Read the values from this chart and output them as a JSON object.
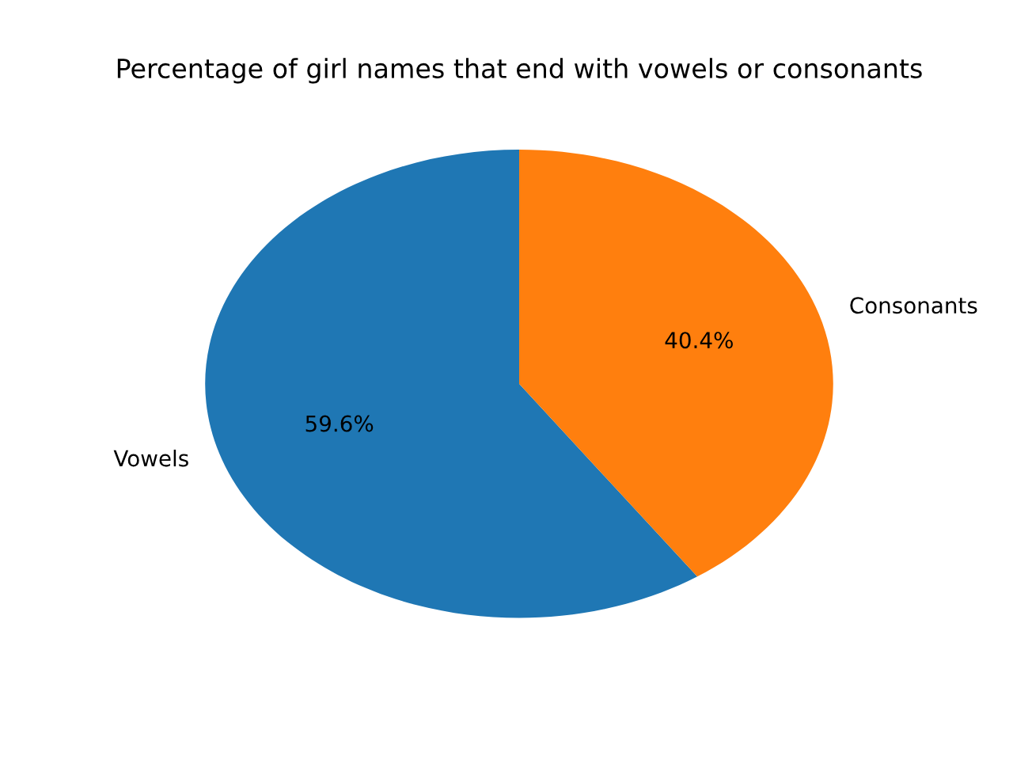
{
  "chart_data": {
    "type": "pie",
    "title": "Percentage of girl names that end with vowels or consonants",
    "categories": [
      "Vowels",
      "Consonants"
    ],
    "values": [
      59.6,
      40.4
    ],
    "colors": [
      "#1f77b4",
      "#ff7f0e"
    ],
    "value_labels": [
      "59.6%",
      "40.4%"
    ]
  }
}
